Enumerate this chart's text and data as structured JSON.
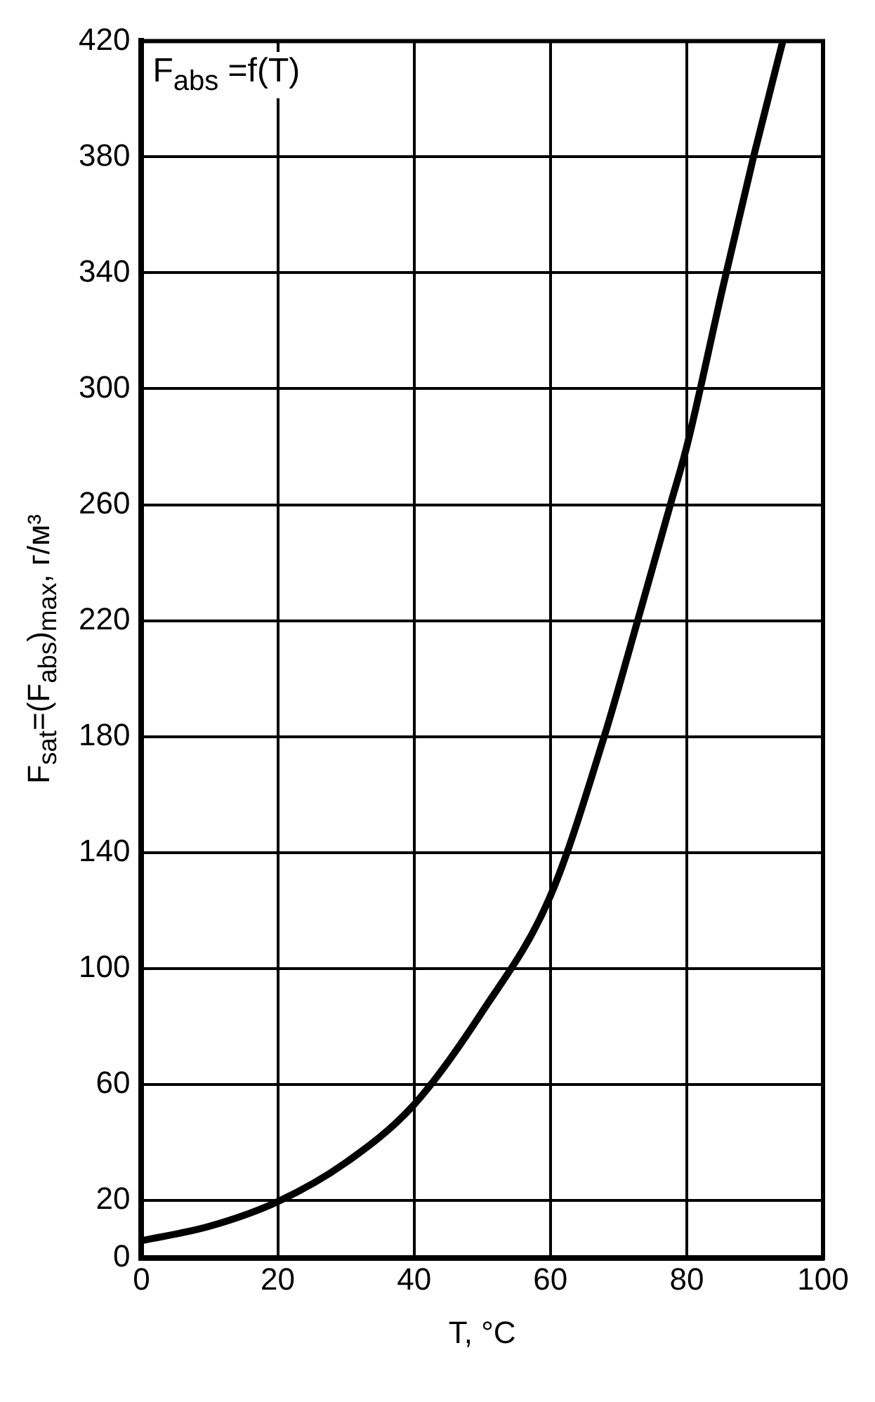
{
  "chart_data": {
    "type": "line",
    "xlabel": "T, °C",
    "ylabel": "F$_{sat}$=(F$_{abs}$)$_{max}$, г/м³",
    "annotations": [
      "F$_{abs}$ =f(T)"
    ],
    "series": [
      {
        "color": "#000000",
        "x": [
          0,
          10,
          20,
          30,
          40,
          50,
          60,
          67.9,
          72.8,
          77.6,
          80,
          85.3,
          89.8,
          94.1
        ],
        "values": [
          6,
          11,
          19.5,
          33,
          53,
          85,
          125,
          180,
          220,
          260,
          280,
          335,
          380,
          420
        ]
      }
    ],
    "xlim": [
      0,
      100
    ],
    "xticks": [
      0,
      20,
      40,
      60,
      80,
      100
    ],
    "ylim": [
      0,
      420
    ],
    "yticks": [
      0,
      20,
      60,
      100,
      140,
      180,
      220,
      260,
      300,
      340,
      380,
      420
    ],
    "grid": true,
    "marker": "none",
    "line_style": "solid",
    "legend": false
  }
}
